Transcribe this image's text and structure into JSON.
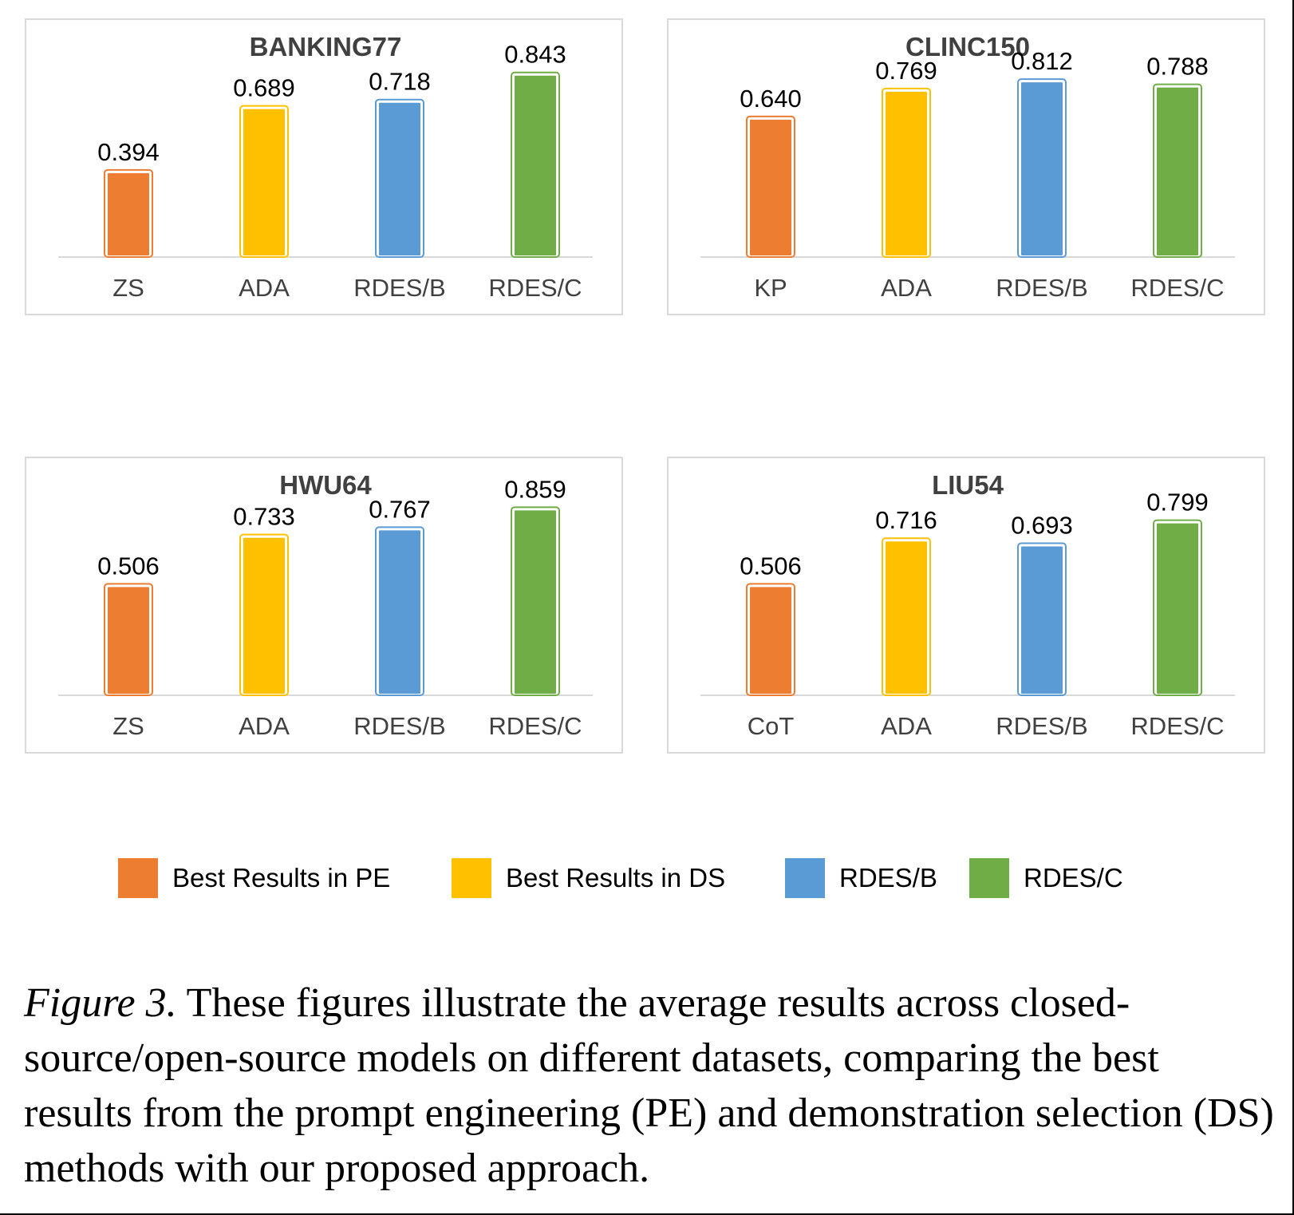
{
  "chart_data": [
    {
      "type": "bar",
      "title": "BANKING77",
      "categories": [
        "ZS",
        "ADA",
        "RDES/B",
        "RDES/C"
      ],
      "values": [
        0.394,
        0.689,
        0.718,
        0.843
      ],
      "value_labels": [
        "0.394",
        "0.689",
        "0.718",
        "0.843"
      ],
      "colors": [
        "#ED7D31",
        "#FFC000",
        "#5B9BD5",
        "#70AD47"
      ],
      "ylim": [
        0,
        1.0
      ],
      "grid": false
    },
    {
      "type": "bar",
      "title": "CLINC150",
      "categories": [
        "KP",
        "ADA",
        "RDES/B",
        "RDES/C"
      ],
      "values": [
        0.64,
        0.769,
        0.812,
        0.788
      ],
      "value_labels": [
        "0.640",
        "0.769",
        "0.812",
        "0.788"
      ],
      "colors": [
        "#ED7D31",
        "#FFC000",
        "#5B9BD5",
        "#70AD47"
      ],
      "ylim": [
        0,
        1.0
      ],
      "grid": false
    },
    {
      "type": "bar",
      "title": "HWU64",
      "categories": [
        "ZS",
        "ADA",
        "RDES/B",
        "RDES/C"
      ],
      "values": [
        0.506,
        0.733,
        0.767,
        0.859
      ],
      "value_labels": [
        "0.506",
        "0.733",
        "0.767",
        "0.859"
      ],
      "colors": [
        "#ED7D31",
        "#FFC000",
        "#5B9BD5",
        "#70AD47"
      ],
      "ylim": [
        0,
        1.0
      ],
      "grid": false
    },
    {
      "type": "bar",
      "title": "LIU54",
      "categories": [
        "CoT",
        "ADA",
        "RDES/B",
        "RDES/C"
      ],
      "values": [
        0.506,
        0.716,
        0.693,
        0.799
      ],
      "value_labels": [
        "0.506",
        "0.716",
        "0.693",
        "0.799"
      ],
      "colors": [
        "#ED7D31",
        "#FFC000",
        "#5B9BD5",
        "#70AD47"
      ],
      "ylim": [
        0,
        1.0
      ],
      "grid": false
    }
  ],
  "legend": {
    "placement": "bottom",
    "items": [
      {
        "label": "Best Results in PE",
        "color": "#ED7D31"
      },
      {
        "label": "Best Results in DS",
        "color": "#FFC000"
      },
      {
        "label": "RDES/B",
        "color": "#5B9BD5"
      },
      {
        "label": "RDES/C",
        "color": "#70AD47"
      }
    ]
  },
  "caption": {
    "label": "Figure 3.",
    "text": "These figures illustrate the average results across closed-source/open-source models on different datasets, comparing the best results from the prompt engineering (PE) and demonstration selection (DS) methods with our proposed approach."
  }
}
